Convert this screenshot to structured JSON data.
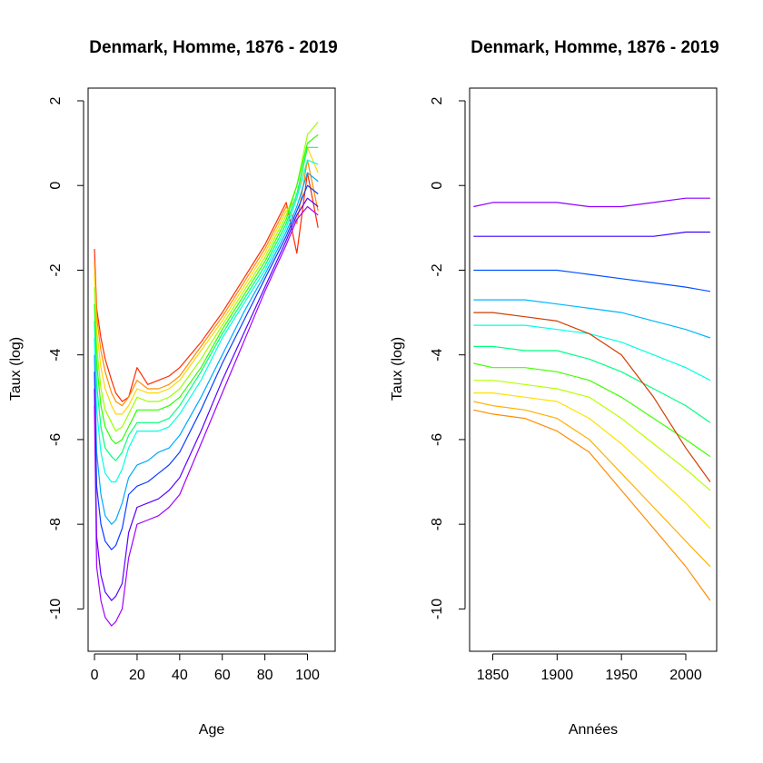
{
  "chart_data": [
    {
      "type": "line",
      "title": "Denmark, Homme, 1876 - 2019",
      "xlabel": "Age",
      "ylabel": "Taux (log)",
      "xlim": [
        -3,
        113
      ],
      "ylim": [
        -11,
        2.3
      ],
      "xticks": [
        0,
        20,
        40,
        60,
        80,
        100
      ],
      "yticks": [
        2,
        0,
        -2,
        -4,
        -6,
        -8,
        -10
      ],
      "color_scale": "rainbow",
      "series_description": "one line per calendar year, colored red (earliest) through yellow, green, cyan, blue to violet (latest)",
      "series": [
        {
          "name": "",
          "color": "#ff2a00",
          "x": [
            0,
            1,
            3,
            5,
            8,
            10,
            13,
            16,
            20,
            25,
            30,
            35,
            40,
            50,
            60,
            70,
            80,
            90,
            95,
            100,
            105
          ],
          "y": [
            -1.5,
            -2.9,
            -3.6,
            -4.1,
            -4.6,
            -4.9,
            -5.1,
            -5.0,
            -4.3,
            -4.7,
            -4.6,
            -4.5,
            -4.3,
            -3.7,
            -3.0,
            -2.2,
            -1.4,
            -0.4,
            -1.6,
            0.3,
            -1.0
          ]
        },
        {
          "name": "",
          "color": "#ff8c00",
          "x": [
            0,
            1,
            3,
            5,
            8,
            10,
            13,
            16,
            20,
            25,
            30,
            35,
            40,
            50,
            60,
            70,
            80,
            90,
            95,
            100,
            105
          ],
          "y": [
            -1.8,
            -3.1,
            -3.9,
            -4.4,
            -4.9,
            -5.1,
            -5.2,
            -5.0,
            -4.6,
            -4.8,
            -4.8,
            -4.7,
            -4.5,
            -3.8,
            -3.1,
            -2.3,
            -1.5,
            -0.5,
            -0.9,
            0.6,
            -0.6
          ]
        },
        {
          "name": "",
          "color": "#ffd700",
          "x": [
            0,
            1,
            3,
            5,
            8,
            10,
            13,
            16,
            20,
            25,
            30,
            35,
            40,
            50,
            60,
            70,
            80,
            90,
            95,
            100,
            105
          ],
          "y": [
            -2.1,
            -3.4,
            -4.3,
            -4.8,
            -5.2,
            -5.4,
            -5.4,
            -5.2,
            -4.8,
            -4.9,
            -4.9,
            -4.8,
            -4.6,
            -3.9,
            -3.2,
            -2.4,
            -1.6,
            -0.6,
            -0.3,
            0.9,
            0.3
          ]
        },
        {
          "name": "",
          "color": "#9aff00",
          "x": [
            0,
            1,
            3,
            5,
            8,
            10,
            13,
            16,
            20,
            25,
            30,
            35,
            40,
            50,
            60,
            70,
            80,
            90,
            95,
            100,
            105
          ],
          "y": [
            -2.4,
            -3.8,
            -4.8,
            -5.3,
            -5.6,
            -5.8,
            -5.7,
            -5.4,
            -5.0,
            -5.1,
            -5.1,
            -5.0,
            -4.8,
            -4.1,
            -3.3,
            -2.5,
            -1.7,
            -0.7,
            0.0,
            1.2,
            1.5
          ]
        },
        {
          "name": "",
          "color": "#2bff00",
          "x": [
            0,
            1,
            3,
            5,
            8,
            10,
            13,
            16,
            20,
            25,
            30,
            35,
            40,
            50,
            60,
            70,
            80,
            90,
            95,
            100,
            105
          ],
          "y": [
            -2.8,
            -4.2,
            -5.2,
            -5.7,
            -6.0,
            -6.1,
            -6.0,
            -5.7,
            -5.3,
            -5.3,
            -5.3,
            -5.2,
            -5.0,
            -4.3,
            -3.4,
            -2.6,
            -1.8,
            -0.8,
            0.0,
            1.0,
            1.2
          ]
        },
        {
          "name": "",
          "color": "#00ff7a",
          "x": [
            0,
            1,
            3,
            5,
            8,
            10,
            13,
            16,
            20,
            25,
            30,
            35,
            40,
            50,
            60,
            70,
            80,
            90,
            95,
            100,
            105
          ],
          "y": [
            -3.2,
            -4.7,
            -5.7,
            -6.2,
            -6.4,
            -6.5,
            -6.3,
            -5.9,
            -5.6,
            -5.6,
            -5.6,
            -5.5,
            -5.2,
            -4.4,
            -3.5,
            -2.7,
            -1.9,
            -0.9,
            -0.2,
            0.9,
            0.9
          ]
        },
        {
          "name": "",
          "color": "#00ffe1",
          "x": [
            0,
            1,
            3,
            5,
            8,
            10,
            13,
            16,
            20,
            25,
            30,
            35,
            40,
            50,
            60,
            70,
            80,
            90,
            95,
            100,
            105
          ],
          "y": [
            -3.6,
            -5.3,
            -6.3,
            -6.8,
            -7.0,
            -7.0,
            -6.7,
            -6.2,
            -5.8,
            -5.8,
            -5.8,
            -5.7,
            -5.4,
            -4.6,
            -3.6,
            -2.8,
            -2.0,
            -1.0,
            -0.3,
            0.6,
            0.5
          ]
        },
        {
          "name": "",
          "color": "#00a8ff",
          "x": [
            0,
            1,
            3,
            5,
            8,
            10,
            13,
            16,
            20,
            25,
            30,
            35,
            40,
            50,
            60,
            70,
            80,
            90,
            95,
            100,
            105
          ],
          "y": [
            -4.0,
            -6.3,
            -7.3,
            -7.8,
            -8.0,
            -7.9,
            -7.5,
            -6.9,
            -6.6,
            -6.5,
            -6.3,
            -6.2,
            -5.9,
            -5.0,
            -4.0,
            -3.0,
            -2.1,
            -1.1,
            -0.5,
            0.3,
            0.1
          ]
        },
        {
          "name": "",
          "color": "#0a3cff",
          "x": [
            0,
            1,
            3,
            5,
            8,
            10,
            13,
            16,
            20,
            25,
            30,
            35,
            40,
            50,
            60,
            70,
            80,
            90,
            95,
            100,
            105
          ],
          "y": [
            -4.4,
            -7.1,
            -8.0,
            -8.4,
            -8.6,
            -8.5,
            -8.1,
            -7.3,
            -7.1,
            -7.0,
            -6.8,
            -6.6,
            -6.3,
            -5.3,
            -4.2,
            -3.2,
            -2.2,
            -1.2,
            -0.6,
            0.0,
            -0.2
          ]
        },
        {
          "name": "",
          "color": "#5a00ff",
          "x": [
            0,
            1,
            3,
            5,
            8,
            10,
            13,
            16,
            20,
            25,
            30,
            35,
            40,
            50,
            60,
            70,
            80,
            90,
            95,
            100,
            105
          ],
          "y": [
            -4.8,
            -8.3,
            -9.2,
            -9.6,
            -9.8,
            -9.7,
            -9.4,
            -8.2,
            -7.6,
            -7.5,
            -7.4,
            -7.2,
            -6.9,
            -5.8,
            -4.6,
            -3.5,
            -2.4,
            -1.3,
            -0.7,
            -0.3,
            -0.5
          ]
        },
        {
          "name": "",
          "color": "#a000ff",
          "x": [
            0,
            1,
            3,
            5,
            8,
            10,
            13,
            16,
            20,
            25,
            30,
            35,
            40,
            50,
            60,
            70,
            80,
            90,
            95,
            100,
            105
          ],
          "y": [
            -5.2,
            -9.0,
            -9.8,
            -10.2,
            -10.4,
            -10.3,
            -10.0,
            -8.8,
            -8.0,
            -7.9,
            -7.8,
            -7.6,
            -7.3,
            -6.1,
            -4.9,
            -3.7,
            -2.5,
            -1.4,
            -0.8,
            -0.5,
            -0.7
          ]
        }
      ]
    },
    {
      "type": "line",
      "title": "Denmark, Homme, 1876 - 2019",
      "xlabel": "Années",
      "ylabel": "Taux (log)",
      "xlim": [
        1832,
        2024
      ],
      "ylim": [
        -11,
        2.3
      ],
      "xticks": [
        1850,
        1900,
        1950,
        2000
      ],
      "yticks": [
        2,
        0,
        -2,
        -4,
        -6,
        -8,
        -10
      ],
      "color_scale": "rainbow",
      "series_description": "one line per age, colored orange (young ages) through yellow, green, cyan, blue to violet (oldest ages)",
      "series": [
        {
          "name": "",
          "color": "#ff8c00",
          "x": [
            1835,
            1850,
            1875,
            1900,
            1925,
            1950,
            1975,
            2000,
            2019
          ],
          "y": [
            -5.3,
            -5.4,
            -5.5,
            -5.8,
            -6.3,
            -7.2,
            -8.1,
            -9.0,
            -9.8
          ]
        },
        {
          "name": "",
          "color": "#ffb000",
          "x": [
            1835,
            1850,
            1875,
            1900,
            1925,
            1950,
            1975,
            2000,
            2019
          ],
          "y": [
            -5.1,
            -5.2,
            -5.3,
            -5.5,
            -6.0,
            -6.8,
            -7.6,
            -8.4,
            -9.0
          ]
        },
        {
          "name": "",
          "color": "#ffe000",
          "x": [
            1835,
            1850,
            1875,
            1900,
            1925,
            1950,
            1975,
            2000,
            2019
          ],
          "y": [
            -4.9,
            -4.9,
            -5.0,
            -5.1,
            -5.5,
            -6.1,
            -6.8,
            -7.5,
            -8.1
          ]
        },
        {
          "name": "",
          "color": "#b8ff00",
          "x": [
            1835,
            1850,
            1875,
            1900,
            1925,
            1950,
            1975,
            2000,
            2019
          ],
          "y": [
            -4.6,
            -4.6,
            -4.7,
            -4.8,
            -5.0,
            -5.5,
            -6.1,
            -6.7,
            -7.2
          ]
        },
        {
          "name": "",
          "color": "#40ff00",
          "x": [
            1835,
            1850,
            1875,
            1900,
            1925,
            1950,
            1975,
            2000,
            2019
          ],
          "y": [
            -4.2,
            -4.3,
            -4.3,
            -4.4,
            -4.6,
            -5.0,
            -5.5,
            -6.0,
            -6.4
          ]
        },
        {
          "name": "",
          "color": "#00ff80",
          "x": [
            1835,
            1850,
            1875,
            1900,
            1925,
            1950,
            1975,
            2000,
            2019
          ],
          "y": [
            -3.8,
            -3.8,
            -3.9,
            -3.9,
            -4.1,
            -4.4,
            -4.8,
            -5.2,
            -5.6
          ]
        },
        {
          "name": "",
          "color": "#00ffe6",
          "x": [
            1835,
            1850,
            1875,
            1900,
            1925,
            1950,
            1975,
            2000,
            2019
          ],
          "y": [
            -3.3,
            -3.3,
            -3.3,
            -3.4,
            -3.5,
            -3.7,
            -4.0,
            -4.3,
            -4.6
          ]
        },
        {
          "name": "",
          "color": "#00b4ff",
          "x": [
            1835,
            1850,
            1875,
            1900,
            1925,
            1950,
            1975,
            2000,
            2019
          ],
          "y": [
            -2.7,
            -2.7,
            -2.7,
            -2.8,
            -2.9,
            -3.0,
            -3.2,
            -3.4,
            -3.6
          ]
        },
        {
          "name": "",
          "color": "#0050ff",
          "x": [
            1835,
            1850,
            1875,
            1900,
            1925,
            1950,
            1975,
            2000,
            2019
          ],
          "y": [
            -2.0,
            -2.0,
            -2.0,
            -2.0,
            -2.1,
            -2.2,
            -2.3,
            -2.4,
            -2.5
          ]
        },
        {
          "name": "",
          "color": "#3c00ff",
          "x": [
            1835,
            1850,
            1875,
            1900,
            1925,
            1950,
            1975,
            2000,
            2019
          ],
          "y": [
            -1.2,
            -1.2,
            -1.2,
            -1.2,
            -1.2,
            -1.2,
            -1.2,
            -1.1,
            -1.1
          ]
        },
        {
          "name": "",
          "color": "#8a00ff",
          "x": [
            1835,
            1850,
            1875,
            1900,
            1925,
            1950,
            1975,
            2000,
            2019
          ],
          "y": [
            -0.5,
            -0.4,
            -0.4,
            -0.4,
            -0.5,
            -0.5,
            -0.4,
            -0.3,
            -0.3
          ]
        },
        {
          "name": "",
          "color": "#d23c00",
          "x": [
            1835,
            1850,
            1875,
            1900,
            1925,
            1950,
            1975,
            2000,
            2019
          ],
          "y": [
            -3.0,
            -3.0,
            -3.1,
            -3.2,
            -3.5,
            -4.0,
            -5.0,
            -6.2,
            -7.0
          ]
        }
      ]
    }
  ]
}
